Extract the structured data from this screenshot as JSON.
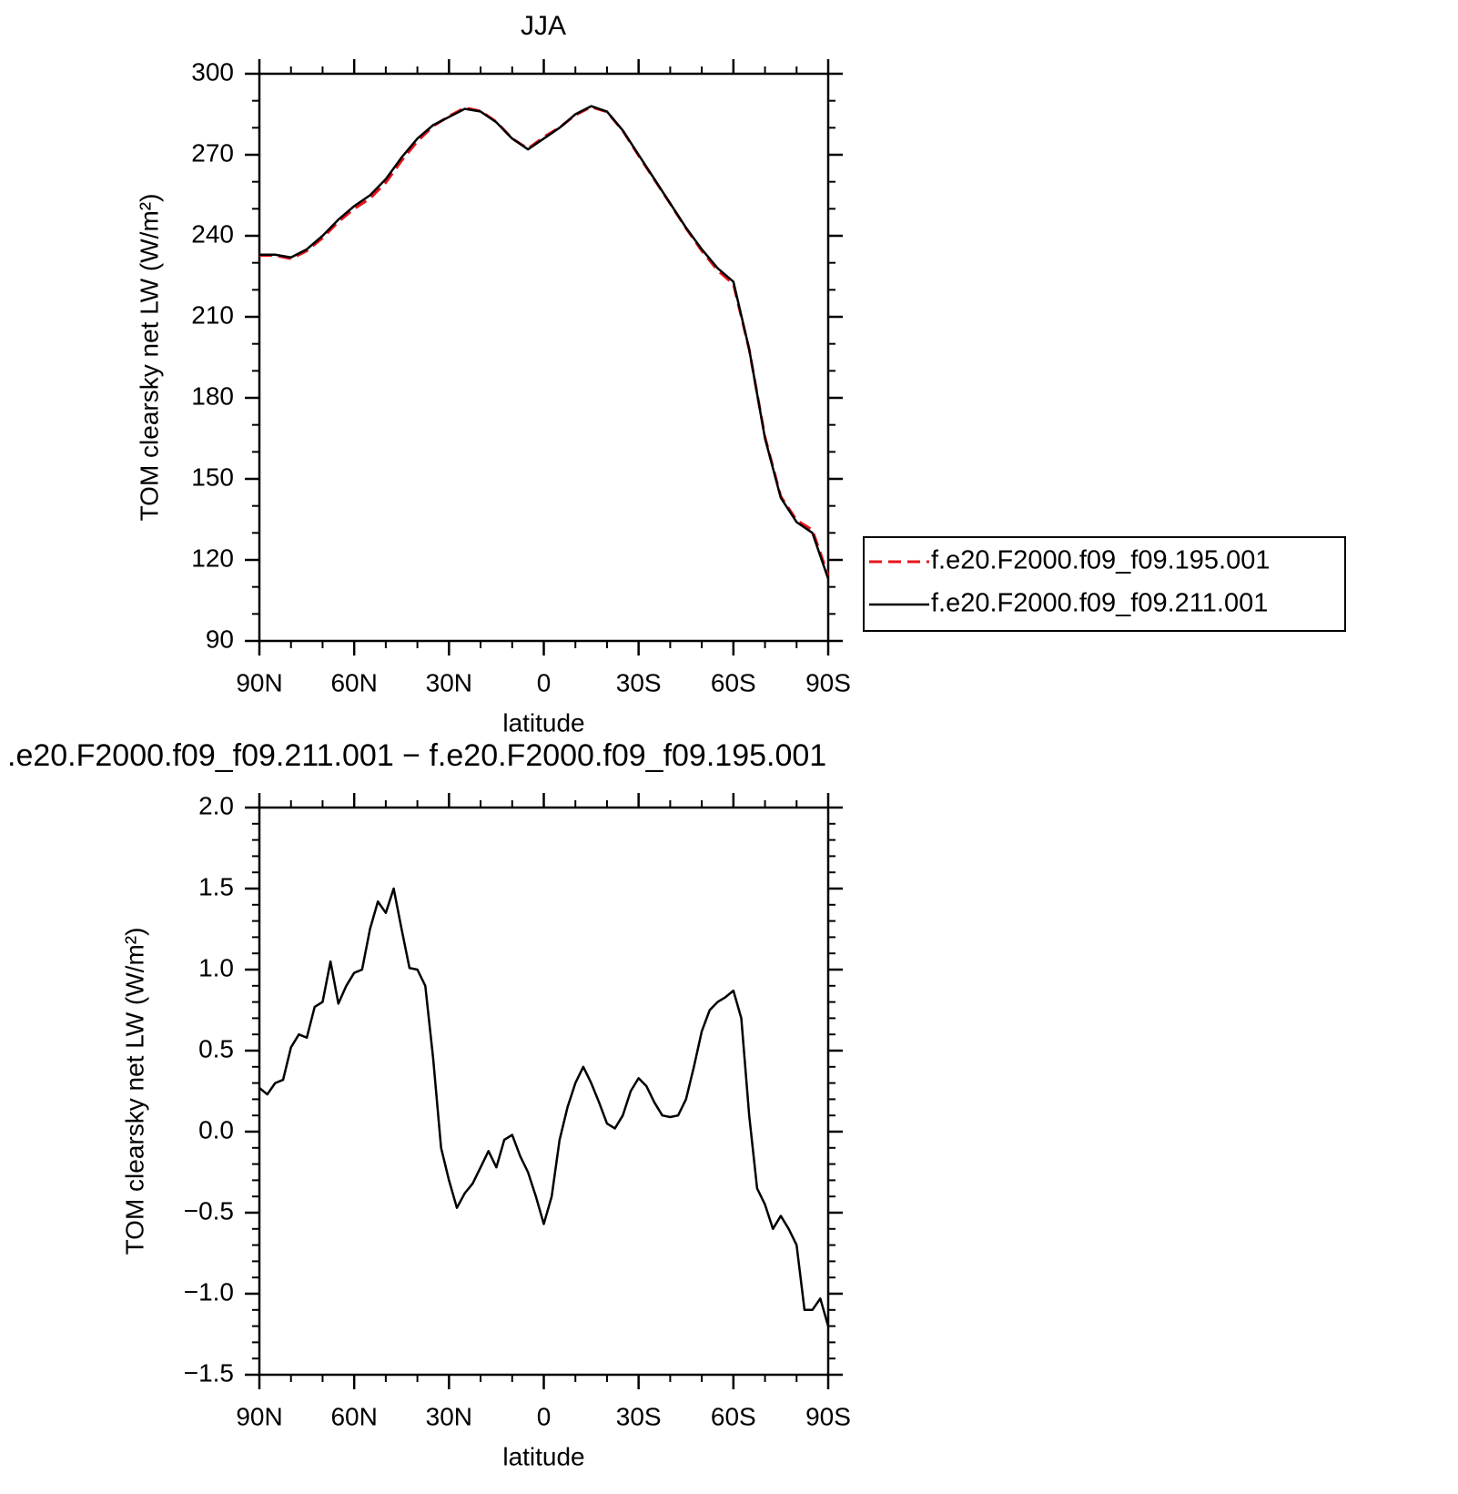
{
  "chart_data": [
    {
      "type": "line",
      "title": "JJA",
      "xlabel": "latitude",
      "ylabel": "TOM clearsky net LW (W/m²)",
      "legend": "right",
      "x": [
        90,
        85,
        80,
        75,
        70,
        65,
        60,
        55,
        50,
        45,
        40,
        35,
        30,
        25,
        20,
        15,
        10,
        5,
        0,
        -5,
        -10,
        -15,
        -20,
        -25,
        -30,
        -35,
        -40,
        -45,
        -50,
        -55,
        -60,
        -65,
        -70,
        -75,
        -80,
        -85,
        -90
      ],
      "series": [
        {
          "name": "f.e20.F2000.f09_f09.195.001",
          "color": "#e8141b",
          "dashed": true,
          "values": [
            232.7,
            232.7,
            231.5,
            234.4,
            239.2,
            245.2,
            250,
            253.8,
            259.7,
            267.8,
            275,
            280.6,
            284.3,
            287.4,
            286.2,
            282.2,
            276,
            272.3,
            276.6,
            280.1,
            284.7,
            287.7,
            285.9,
            278.9,
            269.7,
            260.8,
            251.9,
            242.8,
            234.4,
            227.2,
            222.1,
            197.9,
            165.5,
            143.5,
            134.7,
            131.1,
            114.2
          ]
        },
        {
          "name": "f.e20.F2000.f09_f09.211.001",
          "color": "#000000",
          "dashed": false,
          "values": [
            233,
            233,
            232,
            235,
            240,
            246,
            251,
            255,
            261,
            269,
            276,
            281,
            284,
            287,
            286,
            282,
            276,
            272,
            276,
            280,
            285,
            288,
            286,
            279,
            270,
            261,
            252,
            243,
            235,
            228,
            223,
            198,
            165,
            143,
            134,
            130,
            113
          ]
        }
      ],
      "xlim": [
        90,
        -90
      ],
      "xticks": [
        {
          "value": 90,
          "label": "90N"
        },
        {
          "value": 60,
          "label": "60N"
        },
        {
          "value": 30,
          "label": "30N"
        },
        0,
        {
          "value": -30,
          "label": "30S"
        },
        {
          "value": -60,
          "label": "60S"
        },
        {
          "value": -90,
          "label": "90S"
        }
      ],
      "ylim": [
        90,
        300
      ],
      "yticks": [
        90,
        120,
        150,
        180,
        210,
        240,
        270,
        300
      ]
    },
    {
      "type": "line",
      "title": ".e20.F2000.f09_f09.211.001 − f.e20.F2000.f09_f09.195.001",
      "xlabel": "latitude",
      "ylabel": "TOM clearsky net LW (W/m²)",
      "x": [
        90,
        87.5,
        85,
        82.5,
        80,
        77.5,
        75,
        72.5,
        70,
        67.5,
        65,
        62.5,
        60,
        57.5,
        55,
        52.5,
        50,
        47.5,
        45,
        42.5,
        40,
        37.5,
        35,
        32.5,
        30,
        27.5,
        25,
        22.5,
        20,
        17.5,
        15,
        12.5,
        10,
        7.5,
        5,
        2.5,
        0,
        -2.5,
        -5,
        -7.5,
        -10,
        -12.5,
        -15,
        -17.5,
        -20,
        -22.5,
        -25,
        -27.5,
        -30,
        -32.5,
        -35,
        -37.5,
        -40,
        -42.5,
        -45,
        -47.5,
        -50,
        -52.5,
        -55,
        -57.5,
        -60,
        -62.5,
        -65,
        -67.5,
        -70,
        -72.5,
        -75,
        -77.5,
        -80,
        -82.5,
        -85,
        -87.5,
        -90
      ],
      "series": [
        {
          "color": "#000000",
          "dashed": false,
          "values": [
            0.27,
            0.23,
            0.3,
            0.32,
            0.52,
            0.6,
            0.58,
            0.77,
            0.8,
            1.05,
            0.79,
            0.9,
            0.98,
            1.0,
            1.25,
            1.42,
            1.35,
            1.5,
            1.25,
            1.01,
            1.0,
            0.9,
            0.45,
            -0.1,
            -0.3,
            -0.47,
            -0.38,
            -0.32,
            -0.22,
            -0.12,
            -0.22,
            -0.05,
            -0.02,
            -0.15,
            -0.25,
            -0.4,
            -0.57,
            -0.4,
            -0.05,
            0.15,
            0.3,
            0.4,
            0.3,
            0.18,
            0.05,
            0.02,
            0.1,
            0.25,
            0.33,
            0.28,
            0.18,
            0.1,
            0.09,
            0.1,
            0.2,
            0.4,
            0.62,
            0.75,
            0.8,
            0.83,
            0.87,
            0.7,
            0.1,
            -0.35,
            -0.45,
            -0.6,
            -0.52,
            -0.6,
            -0.7,
            -1.1,
            -1.1,
            -1.03,
            -1.2
          ]
        }
      ],
      "xlim": [
        90,
        -90
      ],
      "xticks": [
        {
          "value": 90,
          "label": "90N"
        },
        {
          "value": 60,
          "label": "60N"
        },
        {
          "value": 30,
          "label": "30N"
        },
        0,
        {
          "value": -30,
          "label": "30S"
        },
        {
          "value": -60,
          "label": "60S"
        },
        {
          "value": -90,
          "label": "90S"
        }
      ],
      "ylim": [
        -1.5,
        2.0
      ],
      "yticks": [
        {
          "value": -1.5,
          "label": "−1.5"
        },
        {
          "value": -1.0,
          "label": "−1.0"
        },
        {
          "value": -0.5,
          "label": "−0.5"
        },
        {
          "value": 0.0,
          "label": "0.0"
        },
        0.5,
        {
          "value": 1.0,
          "label": "1.0"
        },
        1.5,
        {
          "value": 2.0,
          "label": "2.0"
        }
      ]
    }
  ]
}
